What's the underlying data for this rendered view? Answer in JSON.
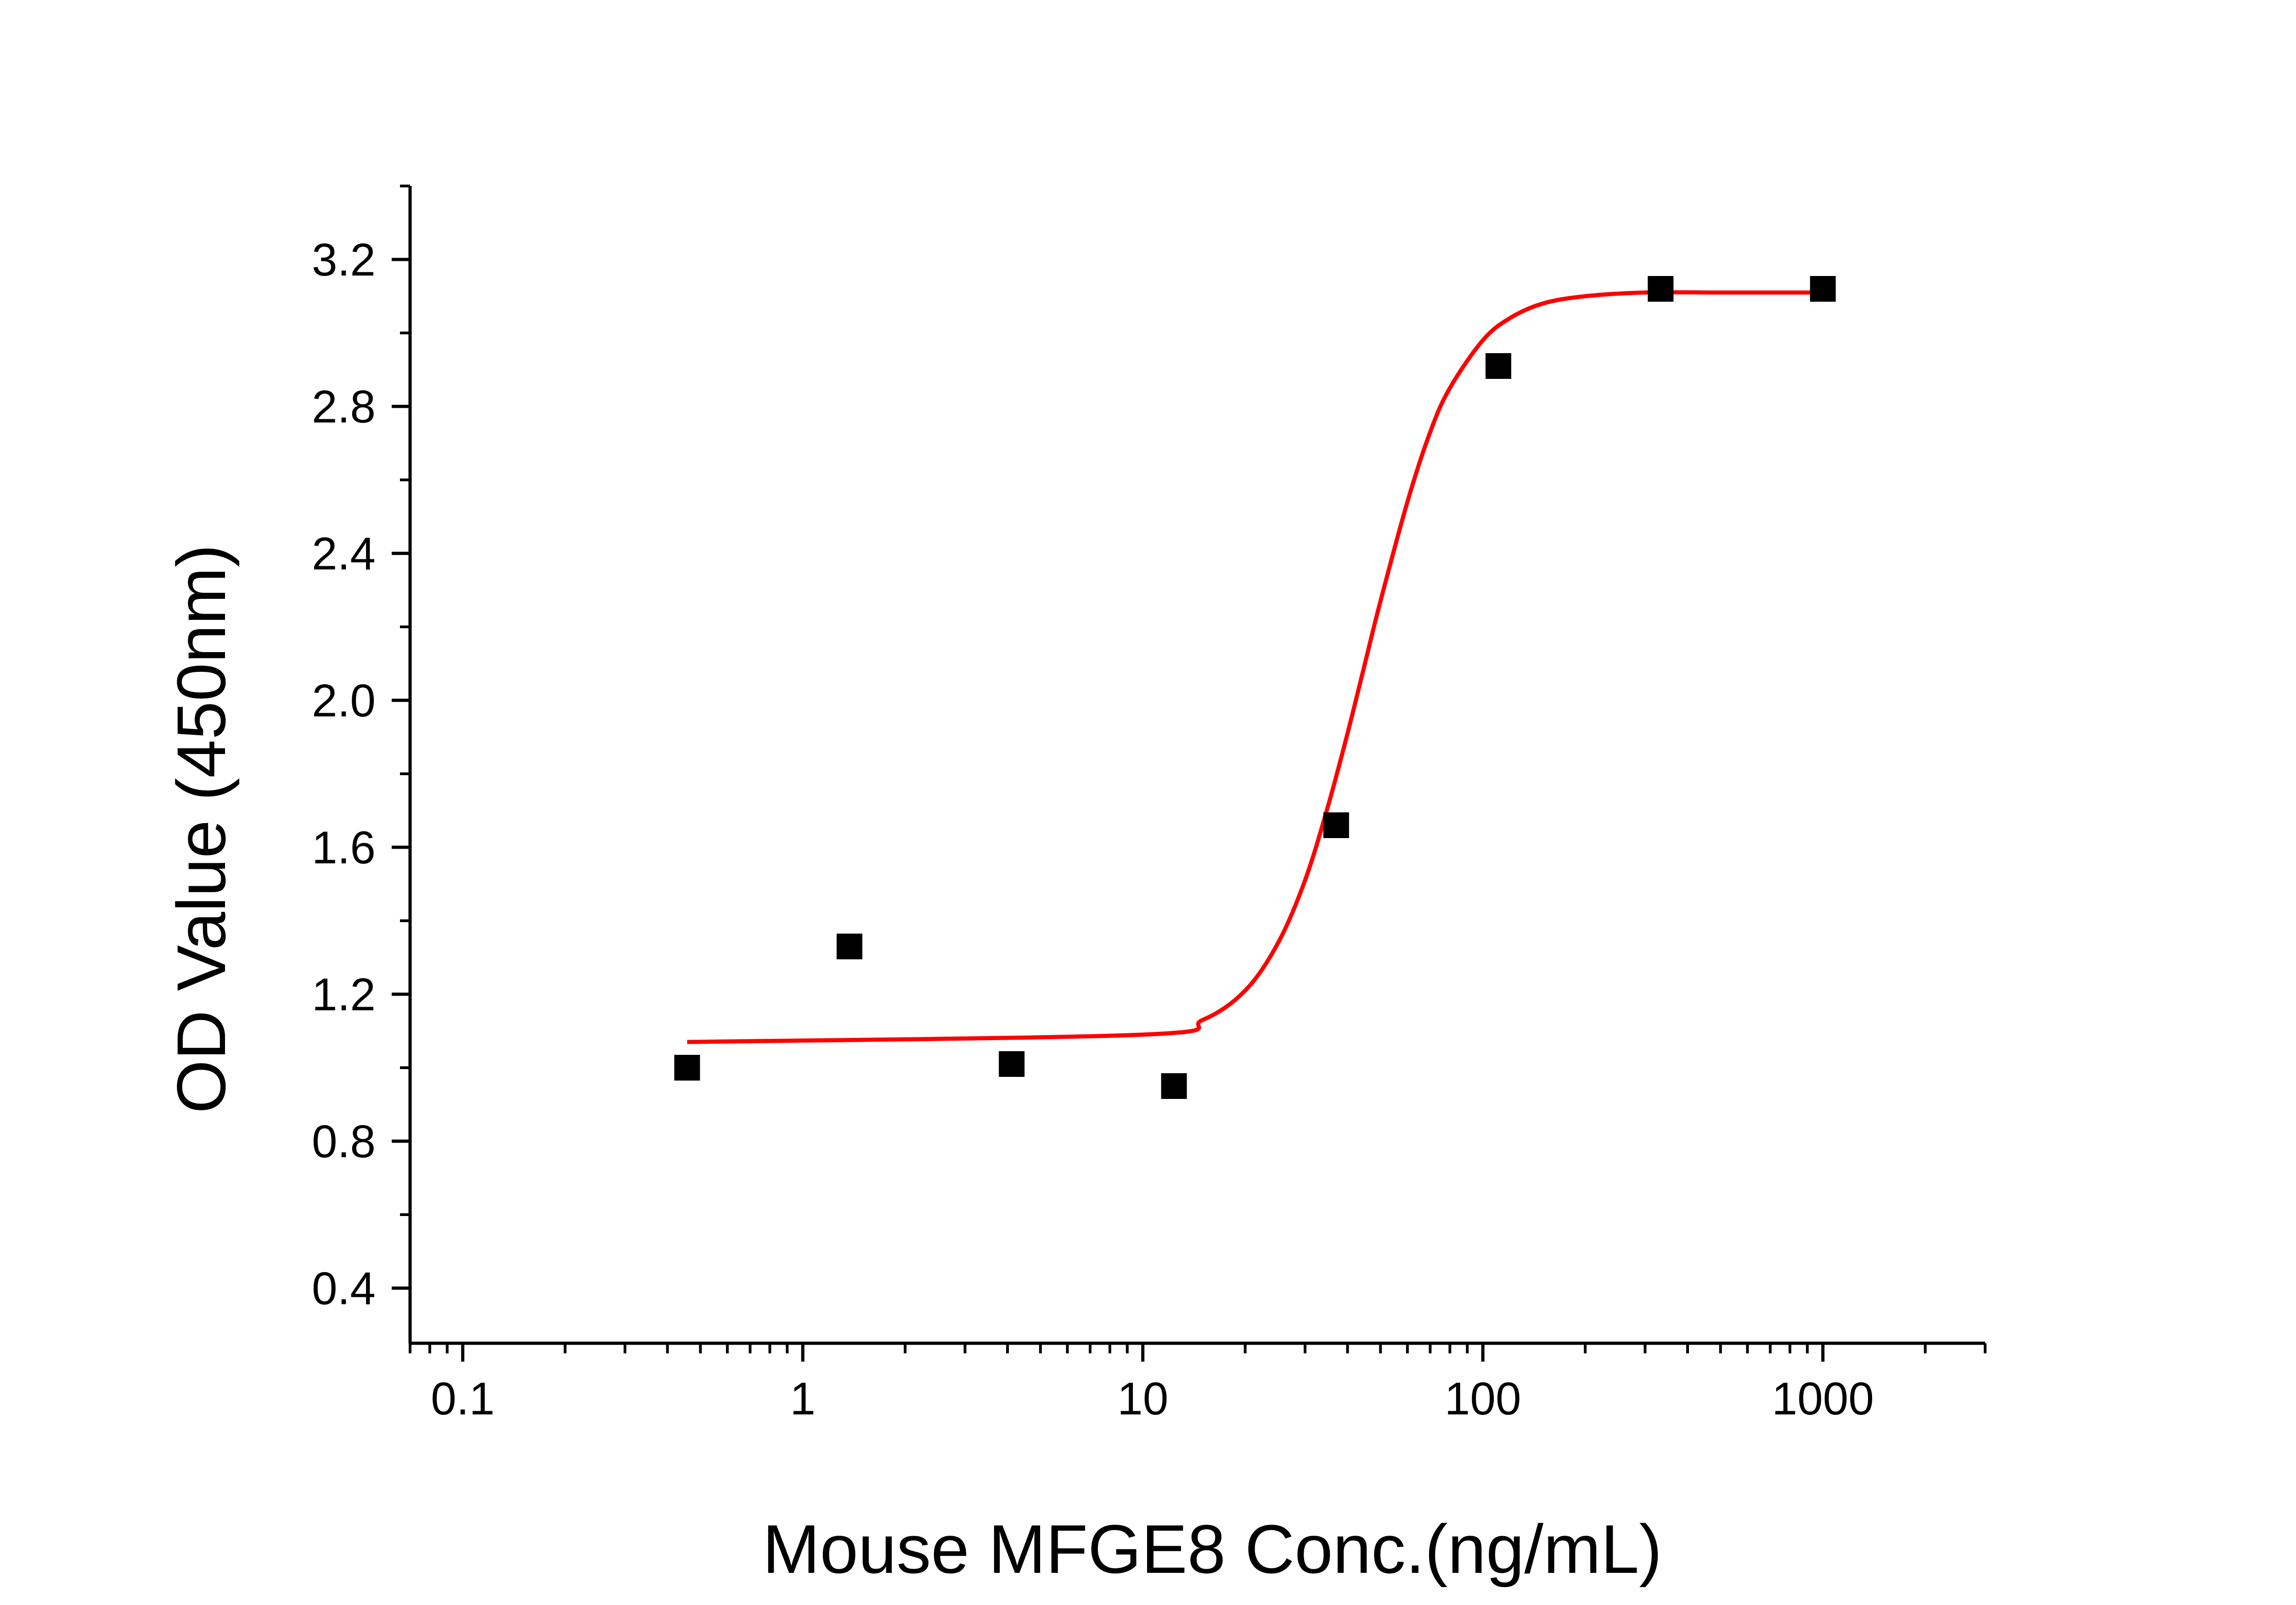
{
  "chart_data": {
    "type": "scatter",
    "title": "",
    "xlabel": "Mouse MFGE8 Conc.(ng/mL)",
    "ylabel": "OD Value (450nm)",
    "x_scale": "log",
    "xlim": [
      0.07,
      3000
    ],
    "ylim": [
      0.25,
      3.4
    ],
    "x_ticks": [
      0.1,
      1,
      10,
      100,
      1000
    ],
    "x_tick_labels": [
      "0.1",
      "1",
      "10",
      "100",
      "1000"
    ],
    "y_ticks": [
      0.4,
      0.8,
      1.2,
      1.6,
      2.0,
      2.4,
      2.8,
      3.2
    ],
    "y_tick_labels": [
      "0.4",
      "0.8",
      "1.2",
      "1.6",
      "2.0",
      "2.4",
      "2.8",
      "3.2"
    ],
    "grid": false,
    "legend": "none",
    "series": [
      {
        "kind": "points",
        "marker": "square",
        "color": "#000000",
        "x": [
          0.457,
          1.372,
          4.115,
          12.35,
          37.04,
          111.1,
          333.3,
          1000
        ],
        "y": [
          1.0,
          1.33,
          1.01,
          0.95,
          1.66,
          2.91,
          3.12,
          3.12
        ]
      },
      {
        "kind": "fit",
        "color": "#ff0000",
        "x": [
          0.457,
          10,
          15,
          20,
          25,
          30,
          35,
          40,
          45,
          50,
          60,
          70,
          80,
          100,
          120,
          150,
          200,
          300,
          500,
          700,
          1000
        ],
        "y": [
          1.07,
          1.09,
          1.13,
          1.21,
          1.34,
          1.51,
          1.71,
          1.91,
          2.1,
          2.27,
          2.54,
          2.73,
          2.85,
          2.98,
          3.04,
          3.08,
          3.1,
          3.11,
          3.11,
          3.11,
          3.11
        ]
      }
    ]
  }
}
